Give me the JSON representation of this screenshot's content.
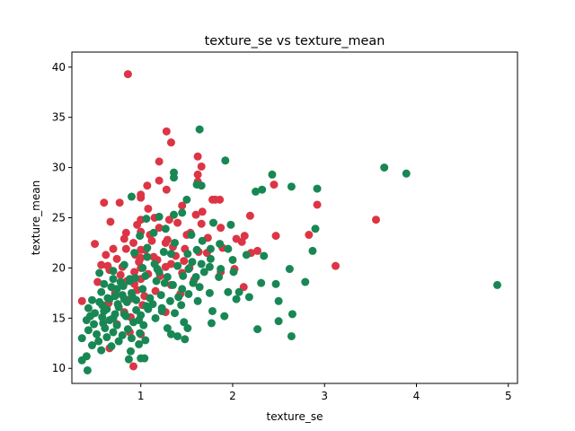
{
  "chart_data": {
    "type": "scatter",
    "title": "texture_se vs texture_mean",
    "xlabel": "texture_se",
    "ylabel": "texture_mean",
    "xlim": [
      0.25,
      5.1
    ],
    "ylim": [
      8.5,
      41.5
    ],
    "xticks": [
      1,
      2,
      3,
      4,
      5
    ],
    "yticks": [
      10,
      15,
      20,
      25,
      30,
      35,
      40
    ],
    "grid": false,
    "legend": "none",
    "series": [
      {
        "color": "#dc3545",
        "points": [
          [
            0.86,
            39.3
          ],
          [
            1.28,
            33.6
          ],
          [
            1.33,
            32.5
          ],
          [
            1.62,
            31.1
          ],
          [
            1.2,
            30.6
          ],
          [
            1.66,
            30.1
          ],
          [
            1.62,
            29.3
          ],
          [
            1.62,
            28.6
          ],
          [
            1.2,
            28.7
          ],
          [
            2.45,
            28.3
          ],
          [
            1.07,
            28.2
          ],
          [
            1.28,
            27.8
          ],
          [
            1.0,
            27.3
          ],
          [
            1.0,
            27.0
          ],
          [
            1.81,
            26.8
          ],
          [
            1.86,
            26.8
          ],
          [
            2.92,
            26.3
          ],
          [
            1.45,
            26.2
          ],
          [
            0.6,
            26.5
          ],
          [
            0.77,
            26.5
          ],
          [
            1.08,
            25.9
          ],
          [
            1.67,
            25.6
          ],
          [
            1.6,
            25.3
          ],
          [
            3.56,
            24.8
          ],
          [
            2.19,
            25.2
          ],
          [
            1.15,
            25.0
          ],
          [
            1.0,
            24.8
          ],
          [
            1.4,
            24.5
          ],
          [
            0.96,
            24.3
          ],
          [
            0.67,
            24.6
          ],
          [
            1.2,
            24.0
          ],
          [
            1.87,
            24.0
          ],
          [
            1.0,
            23.6
          ],
          [
            0.84,
            23.5
          ],
          [
            1.5,
            23.3
          ],
          [
            2.13,
            23.2
          ],
          [
            2.47,
            23.2
          ],
          [
            2.83,
            23.3
          ],
          [
            1.73,
            23.0
          ],
          [
            2.1,
            22.6
          ],
          [
            0.82,
            22.9
          ],
          [
            1.12,
            22.7
          ],
          [
            1.27,
            22.5
          ],
          [
            0.5,
            22.4
          ],
          [
            1.35,
            22.1
          ],
          [
            0.7,
            21.9
          ],
          [
            0.84,
            21.9
          ],
          [
            1.05,
            21.8
          ],
          [
            1.63,
            21.6
          ],
          [
            2.2,
            21.5
          ],
          [
            2.27,
            21.7
          ],
          [
            0.62,
            21.3
          ],
          [
            0.94,
            21.3
          ],
          [
            1.38,
            21.2
          ],
          [
            1.0,
            21.0
          ],
          [
            0.74,
            20.9
          ],
          [
            1.18,
            20.8
          ],
          [
            1.47,
            20.7
          ],
          [
            1.33,
            20.4
          ],
          [
            0.57,
            20.3
          ],
          [
            0.64,
            20.2
          ],
          [
            0.8,
            20.1
          ],
          [
            1.0,
            20.0
          ],
          [
            1.27,
            20.1
          ],
          [
            1.53,
            20.0
          ],
          [
            3.12,
            20.2
          ],
          [
            2.02,
            19.9
          ],
          [
            0.66,
            19.8
          ],
          [
            0.93,
            19.6
          ],
          [
            1.08,
            19.4
          ],
          [
            1.45,
            19.5
          ],
          [
            1.87,
            19.6
          ],
          [
            0.78,
            19.3
          ],
          [
            1.21,
            19.2
          ],
          [
            0.53,
            18.6
          ],
          [
            0.85,
            18.7
          ],
          [
            1.0,
            18.9
          ],
          [
            1.58,
            18.8
          ],
          [
            0.93,
            18.4
          ],
          [
            1.33,
            18.3
          ],
          [
            2.12,
            18.1
          ],
          [
            0.96,
            17.8
          ],
          [
            1.16,
            17.7
          ],
          [
            0.72,
            17.5
          ],
          [
            1.04,
            17.2
          ],
          [
            1.43,
            17.4
          ],
          [
            0.88,
            16.9
          ],
          [
            0.36,
            16.7
          ],
          [
            0.65,
            16.5
          ],
          [
            1.02,
            16.3
          ],
          [
            0.82,
            15.6
          ],
          [
            1.27,
            15.6
          ],
          [
            0.89,
            15.1
          ],
          [
            0.74,
            14.4
          ],
          [
            0.88,
            13.6
          ],
          [
            1.0,
            13.4
          ],
          [
            0.66,
            12.0
          ],
          [
            0.92,
            10.2
          ],
          [
            1.0,
            21.8
          ],
          [
            1.1,
            23.3
          ],
          [
            1.29,
            22.8
          ],
          [
            1.54,
            23.5
          ],
          [
            1.72,
            21.5
          ],
          [
            1.89,
            22.0
          ],
          [
            0.98,
            20.6
          ],
          [
            1.14,
            21.1
          ],
          [
            1.48,
            21.9
          ],
          [
            1.31,
            24.8
          ],
          [
            1.66,
            24.4
          ],
          [
            0.92,
            22.5
          ],
          [
            1.78,
            26.8
          ],
          [
            2.04,
            22.9
          ]
        ]
      },
      {
        "color": "#198754",
        "points": [
          [
            1.64,
            33.8
          ],
          [
            1.36,
            29.5
          ],
          [
            1.36,
            29.0
          ],
          [
            1.92,
            30.7
          ],
          [
            3.65,
            30.0
          ],
          [
            3.89,
            29.4
          ],
          [
            2.43,
            29.3
          ],
          [
            1.61,
            28.3
          ],
          [
            1.66,
            28.2
          ],
          [
            2.64,
            28.1
          ],
          [
            2.92,
            27.9
          ],
          [
            2.32,
            27.8
          ],
          [
            2.25,
            27.6
          ],
          [
            0.9,
            27.1
          ],
          [
            1.5,
            26.8
          ],
          [
            1.2,
            25.1
          ],
          [
            1.36,
            25.3
          ],
          [
            1.45,
            25.5
          ],
          [
            1.06,
            24.9
          ],
          [
            1.79,
            24.5
          ],
          [
            1.98,
            24.3
          ],
          [
            2.9,
            23.9
          ],
          [
            1.27,
            23.9
          ],
          [
            1.14,
            23.5
          ],
          [
            1.55,
            23.3
          ],
          [
            0.99,
            23.2
          ],
          [
            1.67,
            22.7
          ],
          [
            1.37,
            22.5
          ],
          [
            1.86,
            22.4
          ],
          [
            2.87,
            21.7
          ],
          [
            1.76,
            21.9
          ],
          [
            1.95,
            21.9
          ],
          [
            1.07,
            22.0
          ],
          [
            1.61,
            21.8
          ],
          [
            2.15,
            21.3
          ],
          [
            1.25,
            21.6
          ],
          [
            1.51,
            21.4
          ],
          [
            1.07,
            21.1
          ],
          [
            1.76,
            20.9
          ],
          [
            2.34,
            21.2
          ],
          [
            2.0,
            20.8
          ],
          [
            1.56,
            20.6
          ],
          [
            1.66,
            20.4
          ],
          [
            1.4,
            20.2
          ],
          [
            0.82,
            20.3
          ],
          [
            1.15,
            20.4
          ],
          [
            1.75,
            20.1
          ],
          [
            1.87,
            19.9
          ],
          [
            2.01,
            19.6
          ],
          [
            2.62,
            19.9
          ],
          [
            0.55,
            19.5
          ],
          [
            0.7,
            19.7
          ],
          [
            1.2,
            19.6
          ],
          [
            1.46,
            19.2
          ],
          [
            0.94,
            19.0
          ],
          [
            1.05,
            19.2
          ],
          [
            1.29,
            19.1
          ],
          [
            1.6,
            19.1
          ],
          [
            1.85,
            19.1
          ],
          [
            0.7,
            18.9
          ],
          [
            0.88,
            18.7
          ],
          [
            1.17,
            18.7
          ],
          [
            2.47,
            18.4
          ],
          [
            2.79,
            18.6
          ],
          [
            4.88,
            18.3
          ],
          [
            0.6,
            18.4
          ],
          [
            0.81,
            18.2
          ],
          [
            1.35,
            18.3
          ],
          [
            1.64,
            18.1
          ],
          [
            2.31,
            18.5
          ],
          [
            0.74,
            17.9
          ],
          [
            1.02,
            17.9
          ],
          [
            1.45,
            17.9
          ],
          [
            1.95,
            17.6
          ],
          [
            2.07,
            17.6
          ],
          [
            0.57,
            17.6
          ],
          [
            0.9,
            17.5
          ],
          [
            1.22,
            17.3
          ],
          [
            1.52,
            17.4
          ],
          [
            1.75,
            17.5
          ],
          [
            2.18,
            17.1
          ],
          [
            0.8,
            17.3
          ],
          [
            1.1,
            17.0
          ],
          [
            2.04,
            16.9
          ],
          [
            2.5,
            16.7
          ],
          [
            0.47,
            16.8
          ],
          [
            0.66,
            16.9
          ],
          [
            0.85,
            16.6
          ],
          [
            1.32,
            16.7
          ],
          [
            1.62,
            16.7
          ],
          [
            0.58,
            16.3
          ],
          [
            0.76,
            16.1
          ],
          [
            1.06,
            16.2
          ],
          [
            1.44,
            16.3
          ],
          [
            0.43,
            16.0
          ],
          [
            0.63,
            15.9
          ],
          [
            0.95,
            15.8
          ],
          [
            1.23,
            15.7
          ],
          [
            1.78,
            15.7
          ],
          [
            0.5,
            15.5
          ],
          [
            0.72,
            15.4
          ],
          [
            1.0,
            15.3
          ],
          [
            1.37,
            15.5
          ],
          [
            2.65,
            15.4
          ],
          [
            0.58,
            15.1
          ],
          [
            0.84,
            15.2
          ],
          [
            1.16,
            15.0
          ],
          [
            1.91,
            15.2
          ],
          [
            0.41,
            14.8
          ],
          [
            0.66,
            14.8
          ],
          [
            0.92,
            14.6
          ],
          [
            1.47,
            14.6
          ],
          [
            2.5,
            14.7
          ],
          [
            0.49,
            14.4
          ],
          [
            0.74,
            14.3
          ],
          [
            1.03,
            14.3
          ],
          [
            1.77,
            14.5
          ],
          [
            0.61,
            14.0
          ],
          [
            0.86,
            13.9
          ],
          [
            1.29,
            14.0
          ],
          [
            1.51,
            14.0
          ],
          [
            0.43,
            13.8
          ],
          [
            0.7,
            13.6
          ],
          [
            0.99,
            13.5
          ],
          [
            2.27,
            13.9
          ],
          [
            0.52,
            13.4
          ],
          [
            0.8,
            13.3
          ],
          [
            1.33,
            13.4
          ],
          [
            0.36,
            13.0
          ],
          [
            0.63,
            13.1
          ],
          [
            0.9,
            13.0
          ],
          [
            1.4,
            13.2
          ],
          [
            2.64,
            13.2
          ],
          [
            0.54,
            12.7
          ],
          [
            0.76,
            12.7
          ],
          [
            1.05,
            12.8
          ],
          [
            1.48,
            12.9
          ],
          [
            0.47,
            12.3
          ],
          [
            0.68,
            12.2
          ],
          [
            0.98,
            12.4
          ],
          [
            0.57,
            11.8
          ],
          [
            0.89,
            11.7
          ],
          [
            0.41,
            11.2
          ],
          [
            0.36,
            10.8
          ],
          [
            0.87,
            10.9
          ],
          [
            1.0,
            11.0
          ],
          [
            1.04,
            11.0
          ],
          [
            0.42,
            9.8
          ],
          [
            0.6,
            15.7
          ],
          [
            0.75,
            16.4
          ],
          [
            0.91,
            17.1
          ],
          [
            0.68,
            18.1
          ],
          [
            0.95,
            16.8
          ],
          [
            1.13,
            16.4
          ],
          [
            1.26,
            18.5
          ],
          [
            1.41,
            17.1
          ],
          [
            0.82,
            15.4
          ],
          [
            0.55,
            16.6
          ],
          [
            0.72,
            17.2
          ],
          [
            1.08,
            15.9
          ],
          [
            1.18,
            19.9
          ],
          [
            1.57,
            18.5
          ],
          [
            1.69,
            19.6
          ],
          [
            0.88,
            18.9
          ],
          [
            0.64,
            17.0
          ],
          [
            0.98,
            14.8
          ],
          [
            1.23,
            16.0
          ],
          [
            0.78,
            18.6
          ],
          [
            1.33,
            21.4
          ],
          [
            1.02,
            20.0
          ],
          [
            1.52,
            19.9
          ],
          [
            0.93,
            21.5
          ],
          [
            0.7,
            15.0
          ],
          [
            0.45,
            15.2
          ],
          [
            0.59,
            14.5
          ],
          [
            0.82,
            16.9
          ]
        ]
      }
    ]
  }
}
